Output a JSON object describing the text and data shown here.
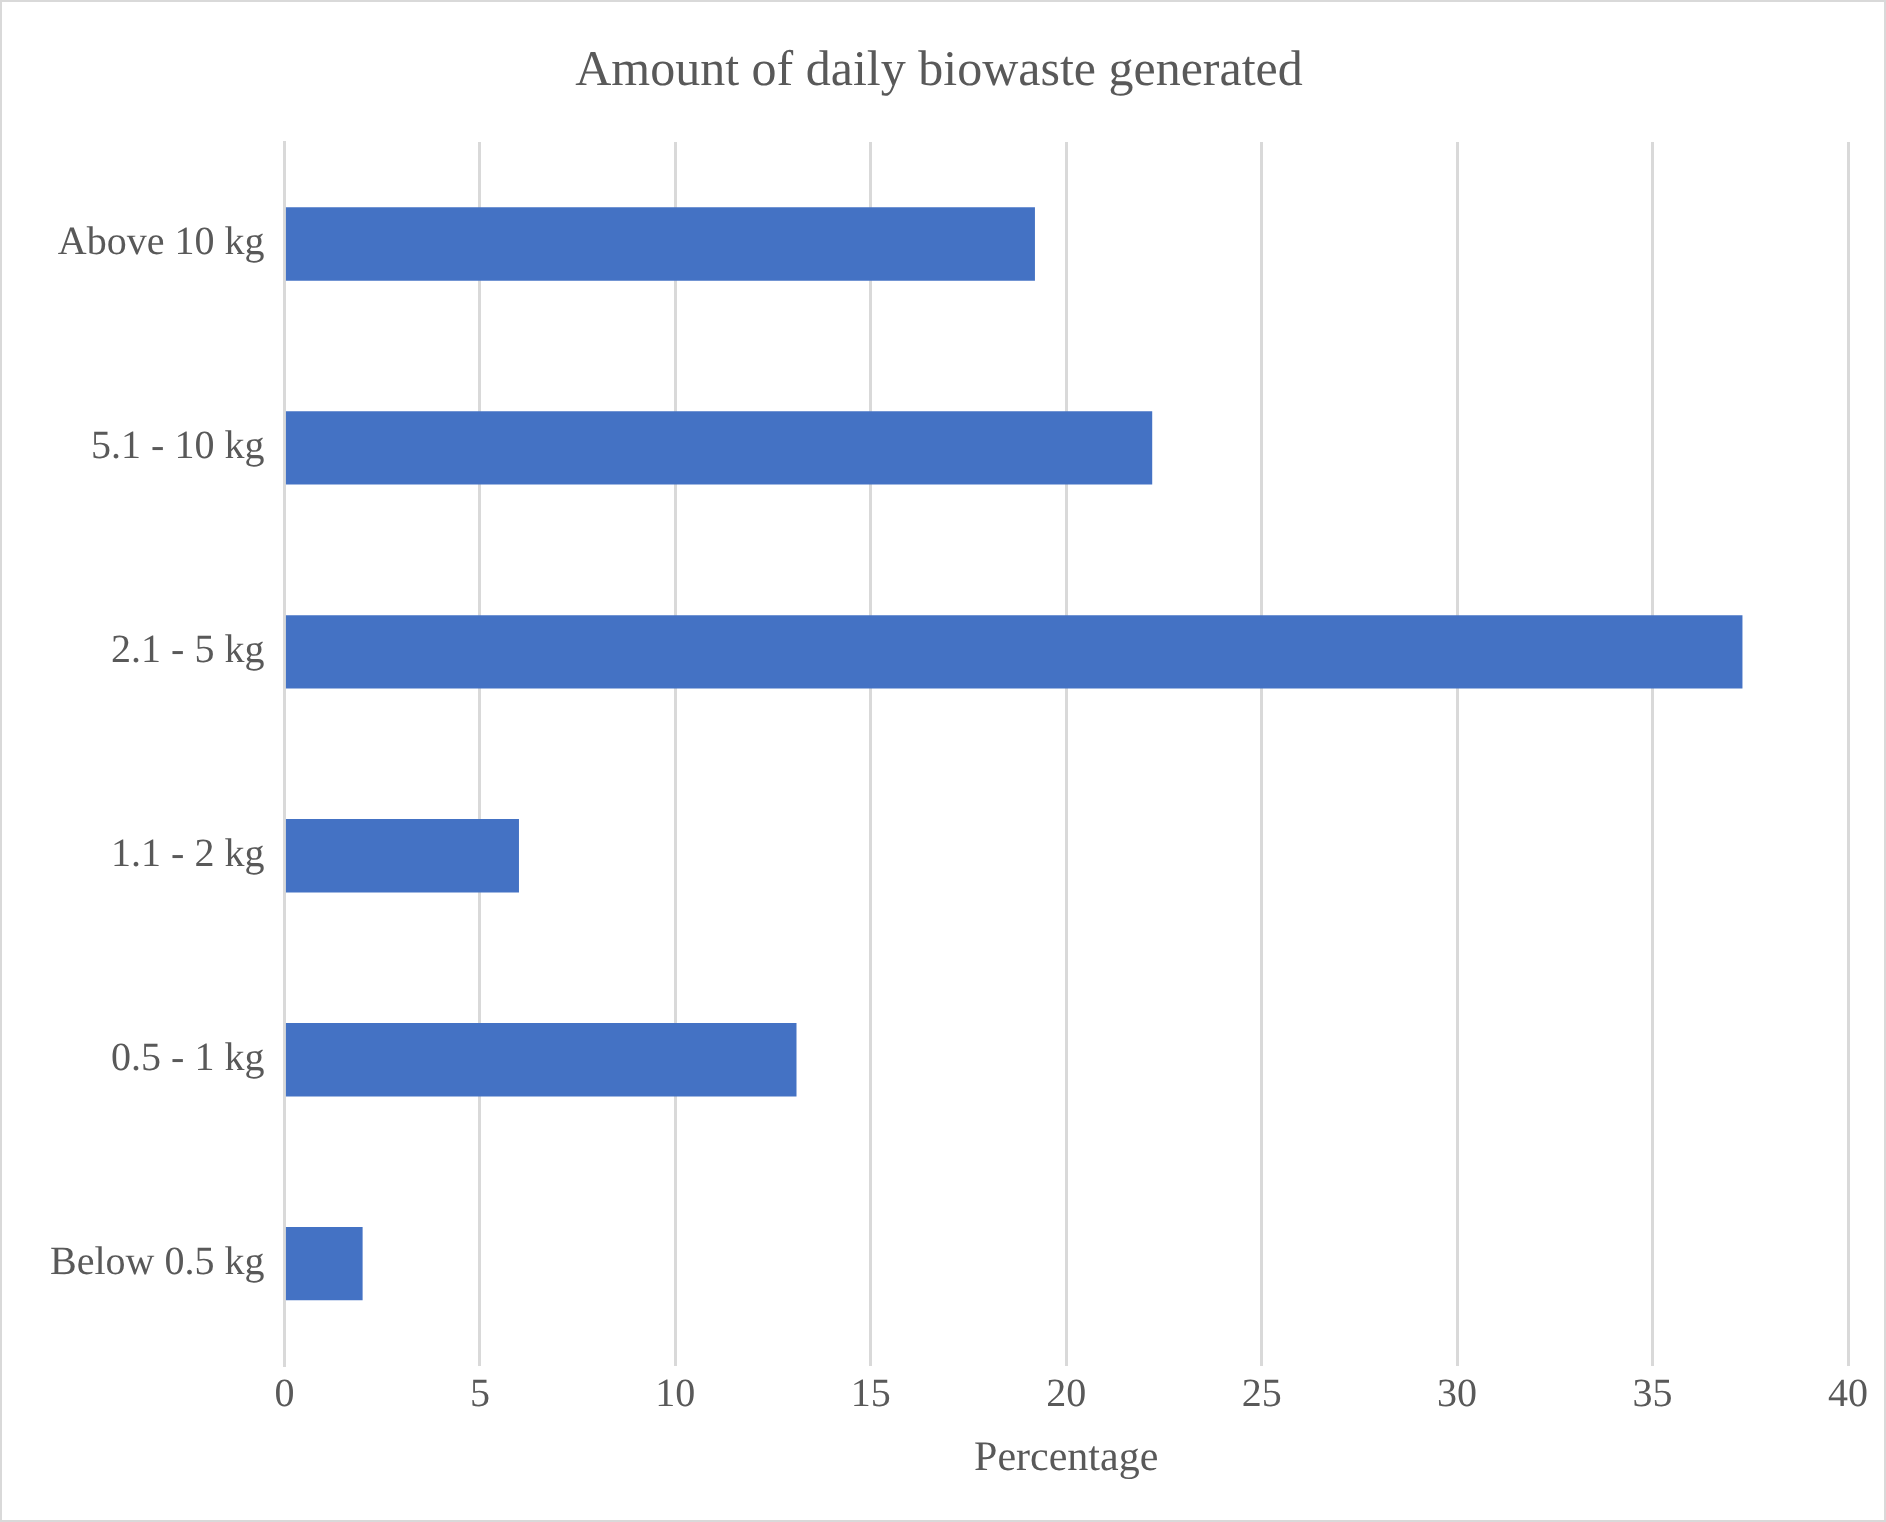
{
  "chart_data": {
    "type": "bar",
    "orientation": "horizontal",
    "title": "Amount of daily biowaste generated",
    "xlabel": "Percentage",
    "categories": [
      "Above 10 kg",
      "5.1 - 10 kg",
      "2.1 - 5 kg",
      "1.1 - 2 kg",
      "0.5 - 1 kg",
      "Below 0.5 kg"
    ],
    "values": [
      19.2,
      22.2,
      37.3,
      6.0,
      13.1,
      2.0
    ],
    "color": "#4472c4",
    "xlim": [
      0,
      40
    ],
    "xticks": [
      0,
      5,
      10,
      15,
      20,
      25,
      30,
      35,
      40
    ],
    "grid": "x",
    "legend": false
  }
}
